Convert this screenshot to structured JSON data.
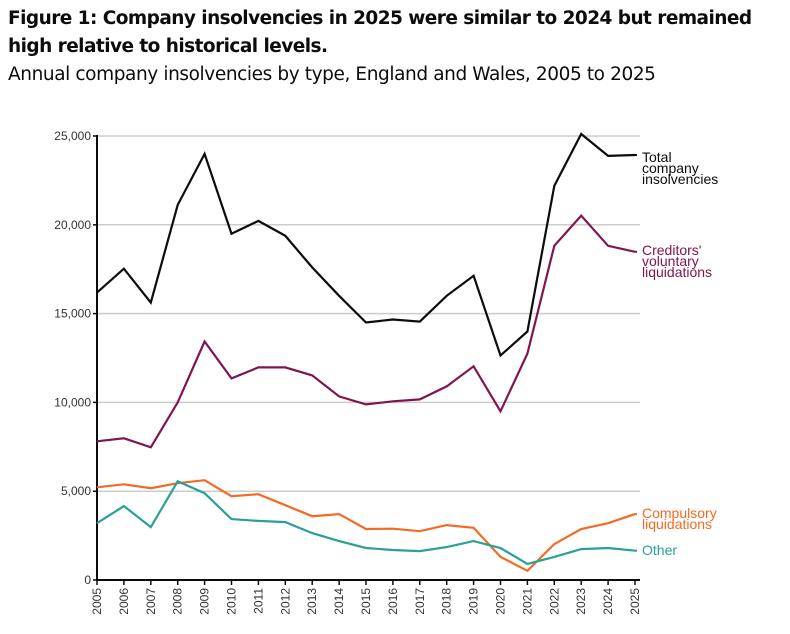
{
  "chart_data": {
    "type": "line",
    "title": "Figure 1: Company insolvencies in 2025 were similar to 2024 but remained high relative to historical levels.",
    "subtitle": "Annual company insolvencies by type, England and Wales, 2005 to 2025",
    "xlabel": "",
    "ylabel": "",
    "ylim": [
      0,
      25000
    ],
    "yticks": [
      0,
      5000,
      10000,
      15000,
      20000,
      25000
    ],
    "ytick_labels": [
      "0",
      "5,000",
      "10,000",
      "15,000",
      "20,000",
      "25,000"
    ],
    "grid": true,
    "legend_placement": "right (direct labels at line ends)",
    "x": [
      "2005",
      "2006",
      "2007",
      "2008",
      "2009",
      "2010",
      "2011",
      "2012",
      "2013",
      "2014",
      "2015",
      "2016",
      "2017",
      "2018",
      "2019",
      "2020",
      "2021",
      "2022",
      "2023",
      "2024",
      "2025"
    ],
    "series": [
      {
        "name": "Total company insolvencies",
        "label_lines": [
          "Total",
          "company",
          "insolvencies"
        ],
        "color": "#0b0c0c",
        "values": [
          16180,
          17530,
          15620,
          21120,
          23990,
          19500,
          20220,
          19380,
          17600,
          16000,
          14500,
          14670,
          14550,
          16000,
          17130,
          12640,
          13990,
          22190,
          25110,
          23880,
          23930
        ]
      },
      {
        "name": "Creditors' voluntary liquidations",
        "label_lines": [
          "Creditors'",
          "voluntary",
          "liquidations"
        ],
        "color": "#801650",
        "values": [
          7810,
          7980,
          7470,
          10000,
          13430,
          11350,
          11970,
          11970,
          11520,
          10340,
          9890,
          10060,
          10170,
          10900,
          12030,
          9500,
          12750,
          18820,
          20510,
          18820,
          18480
        ]
      },
      {
        "name": "Compulsory liquidations",
        "label_lines": [
          "Compulsory",
          "liquidations"
        ],
        "color": "#f46a25",
        "values": [
          5220,
          5390,
          5170,
          5450,
          5620,
          4720,
          4830,
          4210,
          3590,
          3710,
          2870,
          2890,
          2750,
          3090,
          2940,
          1300,
          520,
          2020,
          2870,
          3200,
          3710
        ]
      },
      {
        "name": "Other",
        "label_lines": [
          "Other"
        ],
        "color": "#28a197",
        "values": [
          3200,
          4160,
          2980,
          5560,
          4890,
          3430,
          3330,
          3260,
          2640,
          2190,
          1800,
          1690,
          1630,
          1850,
          2190,
          1800,
          900,
          1300,
          1740,
          1800,
          1650
        ]
      }
    ]
  }
}
